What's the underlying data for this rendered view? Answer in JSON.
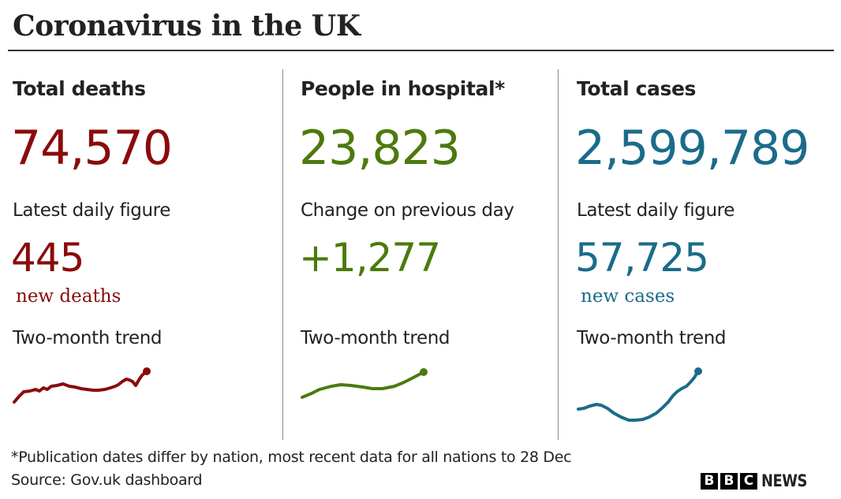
{
  "title": "Coronavirus in the UK",
  "colors": {
    "deaths": "#8a0b0b",
    "hospital": "#4c7a0c",
    "cases": "#1b6b8a"
  },
  "panels": [
    {
      "heading": "Total deaths",
      "total": "74,570",
      "label": "Latest daily figure",
      "daily": "445",
      "unit": "new deaths",
      "trend_label": "Two-month trend"
    },
    {
      "heading": "People in hospital*",
      "total": "23,823",
      "label": "Change on previous day",
      "daily": "+1,277",
      "trend_label": "Two-month trend"
    },
    {
      "heading": "Total cases",
      "total": "2,599,789",
      "label": "Latest daily figure",
      "daily": "57,725",
      "unit": "new cases",
      "trend_label": "Two-month trend"
    }
  ],
  "footer": {
    "note": "*Publication dates differ by nation, most recent data for all nations to 28 Dec",
    "source": "Source: Gov.uk dashboard",
    "logo": {
      "letters": [
        "B",
        "B",
        "C"
      ],
      "word": "NEWS"
    }
  }
}
